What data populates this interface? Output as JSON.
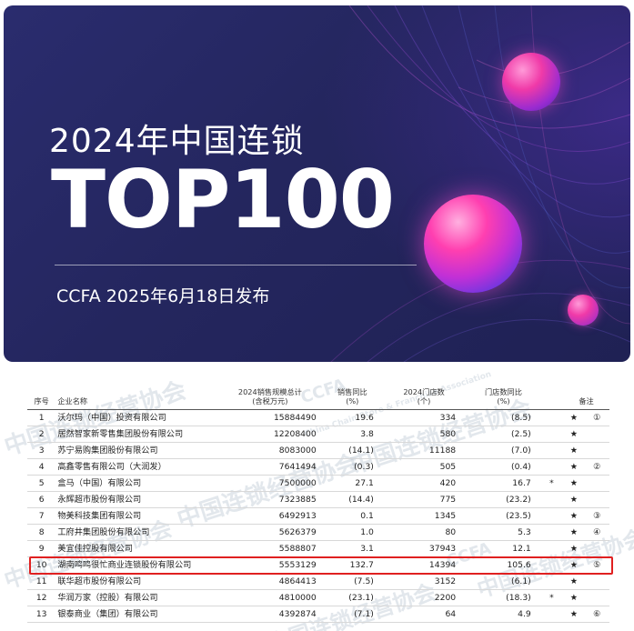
{
  "banner": {
    "year_title": "2024年中国连锁",
    "headline": "TOP100",
    "subtitle": "CCFA 2025年6月18日发布"
  },
  "table": {
    "headers": {
      "rank": "序号",
      "name": "企业名称",
      "sales": "2024销售规模总计\n(含税万元)",
      "sales_yoy": "销售同比\n(%)",
      "stores": "2024门店数\n(个)",
      "stores_yoy": "门店数同比\n(%)",
      "note": "备注"
    },
    "rows": [
      {
        "rank": "1",
        "name": "沃尔玛（中国）投资有限公司",
        "sales": "15884490",
        "yoy": "19.6",
        "stores": "334",
        "stores_yoy": "(8.5)",
        "mark": "",
        "star": "★",
        "note": "①"
      },
      {
        "rank": "2",
        "name": "居然智家新零售集团股份有限公司",
        "sales": "12208400",
        "yoy": "3.8",
        "stores": "580",
        "stores_yoy": "(2.5)",
        "mark": "",
        "star": "★",
        "note": ""
      },
      {
        "rank": "3",
        "name": "苏宁易购集团股份有限公司",
        "sales": "8083000",
        "yoy": "(14.1)",
        "stores": "11188",
        "stores_yoy": "(7.0)",
        "mark": "",
        "star": "★",
        "note": ""
      },
      {
        "rank": "4",
        "name": "高鑫零售有限公司（大润发）",
        "sales": "7641494",
        "yoy": "(0.3)",
        "stores": "505",
        "stores_yoy": "(0.4)",
        "mark": "",
        "star": "★",
        "note": "②"
      },
      {
        "rank": "5",
        "name": "盒马（中国）有限公司",
        "sales": "7500000",
        "yoy": "27.1",
        "stores": "420",
        "stores_yoy": "16.7",
        "mark": "*",
        "star": "★",
        "note": ""
      },
      {
        "rank": "6",
        "name": "永辉超市股份有限公司",
        "sales": "7323885",
        "yoy": "(14.4)",
        "stores": "775",
        "stores_yoy": "(23.2)",
        "mark": "",
        "star": "★",
        "note": ""
      },
      {
        "rank": "7",
        "name": "物美科技集团有限公司",
        "sales": "6492913",
        "yoy": "0.1",
        "stores": "1345",
        "stores_yoy": "(23.5)",
        "mark": "",
        "star": "★",
        "note": "③"
      },
      {
        "rank": "8",
        "name": "工府井集团股份有限公司",
        "sales": "5626379",
        "yoy": "1.0",
        "stores": "80",
        "stores_yoy": "5.3",
        "mark": "",
        "star": "★",
        "note": "④"
      },
      {
        "rank": "9",
        "name": "美宜佳控股有限公司",
        "sales": "5588807",
        "yoy": "3.1",
        "stores": "37943",
        "stores_yoy": "12.1",
        "mark": "",
        "star": "★",
        "note": ""
      },
      {
        "rank": "10",
        "name": "湖南鸣鸣很忙商业连锁股份有限公司",
        "sales": "5553129",
        "yoy": "132.7",
        "stores": "14394",
        "stores_yoy": "105.6",
        "mark": "",
        "star": "★",
        "note": "⑤",
        "highlight": "true"
      },
      {
        "rank": "11",
        "name": "联华超市股份有限公司",
        "sales": "4864413",
        "yoy": "(7.5)",
        "stores": "3152",
        "stores_yoy": "(6.1)",
        "mark": "",
        "star": "★",
        "note": ""
      },
      {
        "rank": "12",
        "name": "华润万家（控股）有限公司",
        "sales": "4810000",
        "yoy": "(23.1)",
        "stores": "2200",
        "stores_yoy": "(18.3)",
        "mark": "*",
        "star": "★",
        "note": ""
      },
      {
        "rank": "13",
        "name": "银泰商业（集团）有限公司",
        "sales": "4392874",
        "yoy": "(7.1)",
        "stores": "64",
        "stores_yoy": "4.9",
        "mark": "",
        "star": "★",
        "note": "⑥"
      }
    ]
  },
  "watermarks": [
    "中国连锁经营协会",
    "China Chain Store & Franchise Association",
    "CCFA"
  ],
  "colors": {
    "banner_bg": "#24265e",
    "orb_pink": "#ff3fb0",
    "highlight_border": "#e02020"
  }
}
